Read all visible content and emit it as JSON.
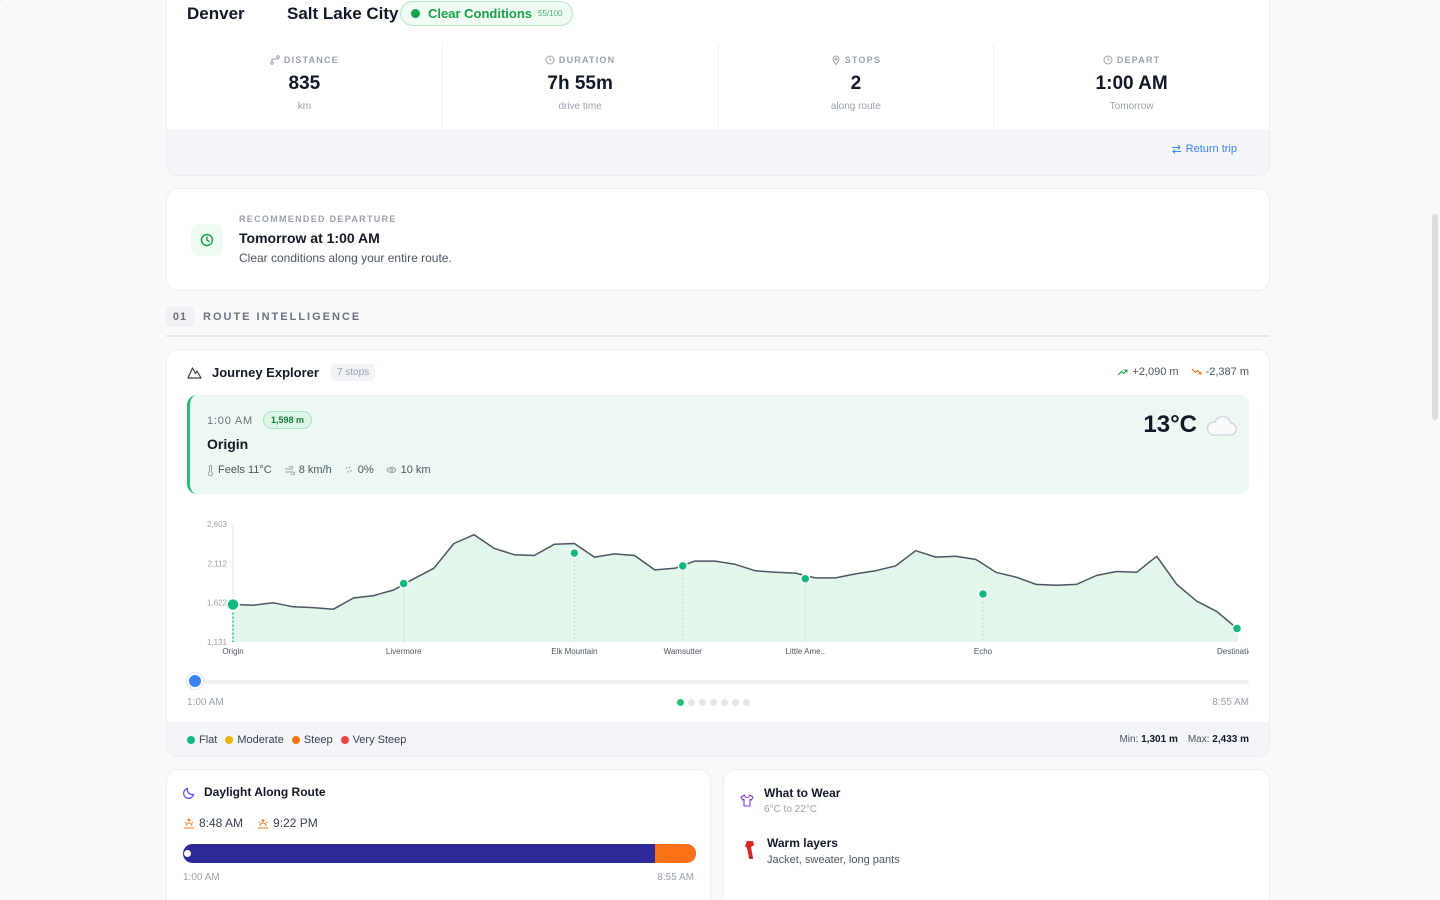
{
  "trip": {
    "from": "Denver",
    "to": "Salt Lake City",
    "conditions": {
      "label": "Clear Conditions",
      "score": "55/100"
    },
    "stats": [
      {
        "label": "DISTANCE",
        "value": "835",
        "sub": "km"
      },
      {
        "label": "DURATION",
        "value": "7h 55m",
        "sub": "drive time"
      },
      {
        "label": "STOPS",
        "value": "2",
        "sub": "along route"
      },
      {
        "label": "DEPART",
        "value": "1:00 AM",
        "sub": "Tomorrow"
      }
    ],
    "return_label": "Return trip"
  },
  "recommendation": {
    "kicker": "RECOMMENDED DEPARTURE",
    "title": "Tomorrow at 1:00 AM",
    "desc": "Clear conditions along your entire route."
  },
  "section": {
    "number": "01",
    "title": "ROUTE INTELLIGENCE"
  },
  "journey": {
    "title": "Journey Explorer",
    "stops_badge": "7 stops",
    "gain": "+2,090 m",
    "loss": "-2,387 m",
    "current_stop": {
      "time": "1:00 AM",
      "altitude": "1,598 m",
      "name": "Origin",
      "feels": "Feels 11°C",
      "wind": "8 km/h",
      "precip": "0%",
      "visibility": "10 km",
      "temp": "13°C",
      "icon": "cloud-icon"
    },
    "timeline_start": "1:00 AM",
    "timeline_end": "8:55 AM",
    "pager_count": 7,
    "pager_active": 0,
    "legend": [
      {
        "label": "Flat",
        "color": "#10b981"
      },
      {
        "label": "Moderate",
        "color": "#eab308"
      },
      {
        "label": "Steep",
        "color": "#f97316"
      },
      {
        "label": "Very Steep",
        "color": "#ef4444"
      }
    ],
    "min_label": "Min:",
    "min_value": "1,301 m",
    "max_label": "Max:",
    "max_value": "2,433 m"
  },
  "chart_data": {
    "type": "area",
    "y_ticks": [
      "2,603",
      "2,112",
      "1,622",
      "1,131"
    ],
    "ylim": [
      1131,
      2603
    ],
    "x": [
      0,
      2,
      4,
      6,
      8,
      10,
      12,
      14,
      16,
      18,
      20,
      22,
      24,
      26,
      28,
      30,
      32,
      34,
      36,
      38,
      40,
      42,
      44,
      46,
      48,
      50,
      52,
      54,
      56,
      58,
      60,
      62,
      64,
      66,
      68,
      70,
      72,
      74,
      76,
      78,
      80,
      82,
      84,
      86,
      88,
      90,
      92,
      94,
      96,
      98,
      100
    ],
    "values": [
      1600,
      1590,
      1620,
      1570,
      1560,
      1540,
      1680,
      1710,
      1780,
      1920,
      2050,
      2360,
      2470,
      2300,
      2220,
      2210,
      2350,
      2360,
      2190,
      2230,
      2210,
      2030,
      2050,
      2140,
      2140,
      2100,
      2020,
      2000,
      1990,
      1930,
      1930,
      1980,
      2020,
      2080,
      2270,
      2190,
      2200,
      2160,
      2000,
      1940,
      1850,
      1840,
      1850,
      1960,
      2010,
      2000,
      2200,
      1850,
      1640,
      1510,
      1300
    ],
    "stops": [
      {
        "name": "Origin",
        "x": 0,
        "y": 1598
      },
      {
        "name": "Livermore",
        "x": 17,
        "y": 1860
      },
      {
        "name": "Elk Mountain",
        "x": 34,
        "y": 2240
      },
      {
        "name": "Wamsutter",
        "x": 44.8,
        "y": 2080
      },
      {
        "name": "Little Ame..",
        "x": 57,
        "y": 1920
      },
      {
        "name": "Echo",
        "x": 74.7,
        "y": 1730
      },
      {
        "name": "Destination",
        "x": 100,
        "y": 1300
      }
    ],
    "grid": false
  },
  "daylight": {
    "title": "Daylight Along Route",
    "sunrise": "8:48 AM",
    "sunset": "9:22 PM",
    "start": "1:00 AM",
    "end": "8:55 AM",
    "dark_fraction": 0.92
  },
  "wear": {
    "title": "What to Wear",
    "range": "6°C to 22°C",
    "item_title": "Warm layers",
    "item_desc": "Jacket, sweater, long pants"
  }
}
